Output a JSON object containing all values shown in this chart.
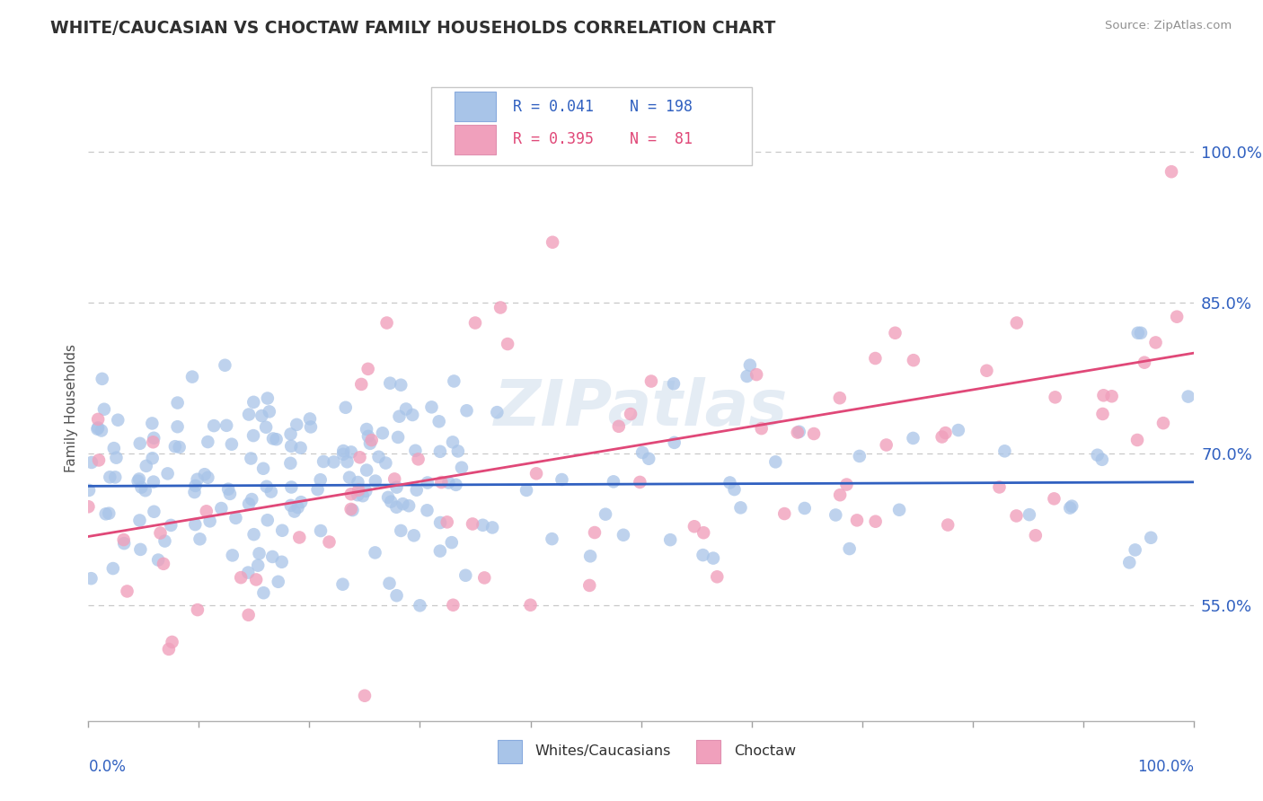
{
  "title": "WHITE/CAUCASIAN VS CHOCTAW FAMILY HOUSEHOLDS CORRELATION CHART",
  "source": "Source: ZipAtlas.com",
  "ylabel": "Family Households",
  "legend_blue_label": "Whites/Caucasians",
  "legend_pink_label": "Choctaw",
  "watermark": "ZIPatlas",
  "ytick_vals": [
    0.55,
    0.7,
    0.85,
    1.0
  ],
  "ytick_labels": [
    "55.0%",
    "70.0%",
    "85.0%",
    "100.0%"
  ],
  "xlim": [
    0.0,
    1.0
  ],
  "ylim": [
    0.435,
    1.055
  ],
  "blue_color": "#A8C4E8",
  "blue_line_color": "#3060C0",
  "pink_color": "#F0A0BC",
  "pink_line_color": "#E04878",
  "title_color": "#303030",
  "axis_label_color": "#3060C0",
  "source_color": "#909090",
  "background_color": "#FFFFFF",
  "grid_color": "#C8C8C8",
  "blue_R": 0.041,
  "blue_N": 198,
  "pink_R": 0.395,
  "pink_N": 81,
  "blue_seed": 7,
  "pink_seed": 13
}
